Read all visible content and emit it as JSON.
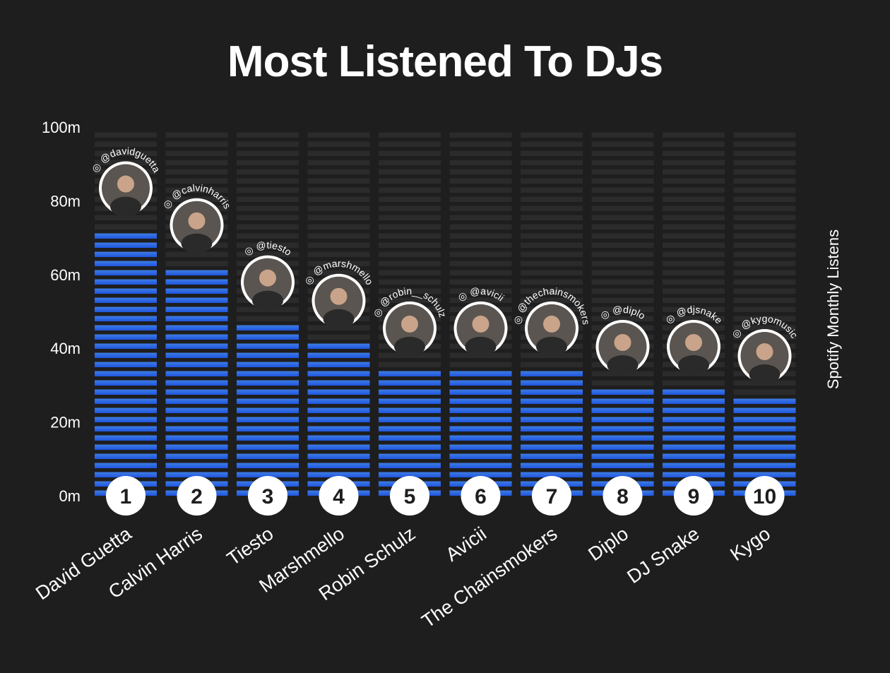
{
  "title": "Most Listened To DJs",
  "colors": {
    "background": "#1e1e1e",
    "bar_top": "#3f7de3",
    "bar_bottom": "#1f55e0",
    "track": "#2b2b2b",
    "rank_badge": "#ffffff"
  },
  "chart_data": {
    "type": "bar",
    "ylabel": "Spotify Monthly Listens",
    "xlabel": "",
    "ylim": [
      0,
      100
    ],
    "yticks": [
      "0m",
      "20m",
      "40m",
      "60m",
      "80m",
      "100m"
    ],
    "categories": [
      "David Guetta",
      "Calvin Harris",
      "Tiesto",
      "Marshmello",
      "Robin Schulz",
      "Avicii",
      "The Chainsmokers",
      "Diplo",
      "DJ Snake",
      "Kygo"
    ],
    "values": [
      72.5,
      62.5,
      47,
      42,
      34.5,
      34.5,
      34.5,
      29.5,
      29.5,
      27
    ],
    "ranks": [
      "1",
      "2",
      "3",
      "4",
      "5",
      "6",
      "7",
      "8",
      "9",
      "10"
    ],
    "handles": [
      "@davidguetta",
      "@calvinharris",
      "@tiesto",
      "@marshmello",
      "@robin__schulz",
      "@avicii",
      "@thechainsmokers",
      "@diplo",
      "@djsnake",
      "@kygomusic"
    ],
    "grid": false
  }
}
